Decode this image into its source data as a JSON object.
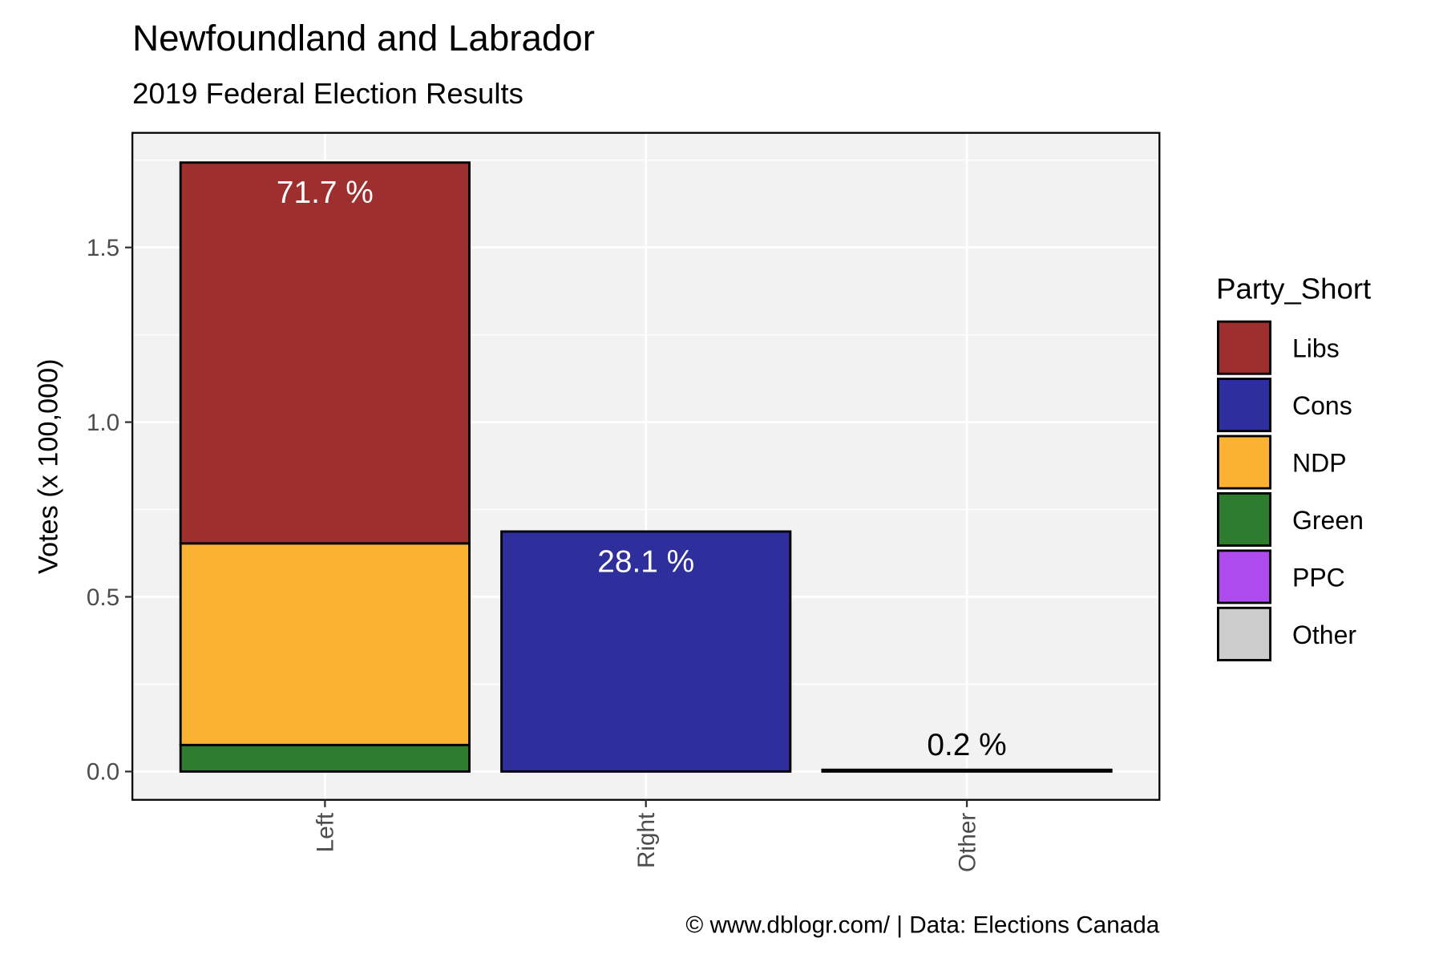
{
  "chart_data": {
    "type": "stacked_bar",
    "title": "Newfoundland and Labrador",
    "subtitle": "2019 Federal Election Results",
    "y_label": "Votes (x 100,000)",
    "caption": "© www.dblogr.com/  |  Data: Elections Canada",
    "legend_title": "Party_Short",
    "legend_position": "right",
    "grid": true,
    "categories": [
      "Left",
      "Right",
      "Other"
    ],
    "series": [
      {
        "name": "Libs",
        "color": "#9e2f2f",
        "values": [
          1.09,
          null,
          null
        ]
      },
      {
        "name": "Cons",
        "color": "#2e2e9c",
        "values": [
          null,
          0.687,
          null
        ]
      },
      {
        "name": "NDP",
        "color": "#fbb131",
        "values": [
          0.577,
          null,
          null
        ]
      },
      {
        "name": "Green",
        "color": "#2e7d2e",
        "values": [
          0.076,
          null,
          null
        ]
      },
      {
        "name": "PPC",
        "color": "#ae4bef",
        "values": [
          null,
          null,
          null
        ]
      },
      {
        "name": "Other",
        "color": "#cccccc",
        "values": [
          null,
          null,
          0.005
        ]
      }
    ],
    "stack_order": [
      "Green",
      "NDP",
      "Libs",
      "Cons",
      "PPC",
      "Other"
    ],
    "total_labels": [
      "71.7 %",
      "28.1 %",
      "0.2 %"
    ],
    "ylim": [
      -0.081,
      1.828
    ],
    "yticks": [
      {
        "value": 0,
        "label": "0.0"
      },
      0.5,
      {
        "value": 1,
        "label": "1.0"
      },
      1.5
    ]
  }
}
